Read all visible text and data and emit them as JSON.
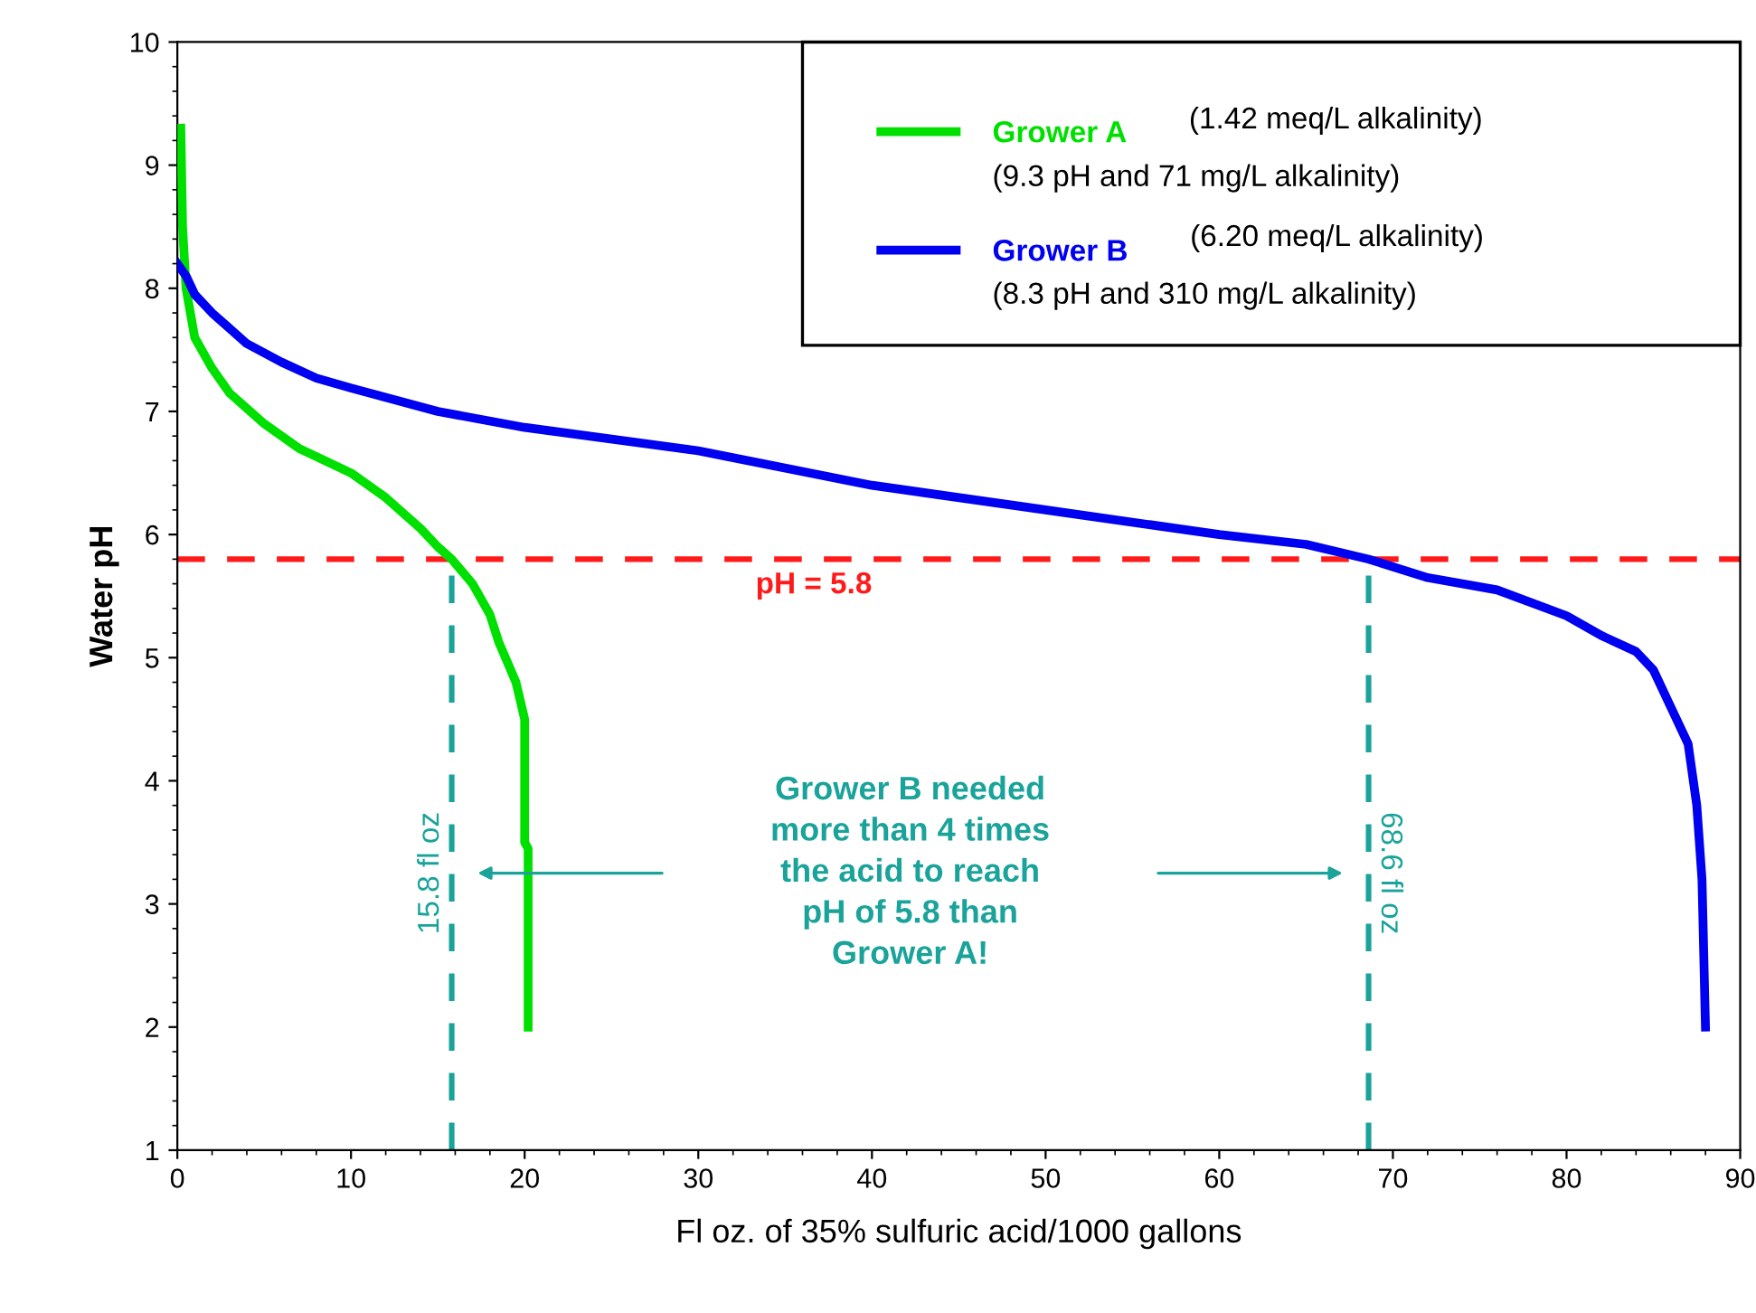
{
  "chart_data": {
    "type": "line",
    "xlabel": "Fl oz. of 35% sulfuric acid/1000 gallons",
    "ylabel": "Water pH",
    "xlim": [
      0,
      90
    ],
    "xticks": [
      0,
      10,
      20,
      30,
      40,
      50,
      60,
      70,
      80,
      90
    ],
    "ylim": [
      1,
      10
    ],
    "yticks": [
      1,
      2,
      3,
      4,
      5,
      6,
      7,
      8,
      9,
      10
    ],
    "grid": false,
    "legend": "top right",
    "marker": "none",
    "line_style": "solid",
    "series": [
      {
        "name": "Grower A",
        "color": "#00e000",
        "x": [
          0.2,
          0.3,
          0.5,
          1,
          2,
          3,
          5,
          7,
          10,
          12,
          14,
          15,
          15.8,
          17,
          18,
          18.5,
          19.5,
          20,
          20,
          20.2,
          20.2
        ],
        "values": [
          9.3,
          8.5,
          8.0,
          7.6,
          7.35,
          7.15,
          6.9,
          6.7,
          6.5,
          6.3,
          6.05,
          5.9,
          5.8,
          5.6,
          5.35,
          5.13,
          4.8,
          4.5,
          3.5,
          3.45,
          2.0
        ]
      },
      {
        "name": "Grower B",
        "color": "#0000f0",
        "x": [
          0,
          0.5,
          1,
          2,
          4,
          6,
          8,
          10,
          15,
          20,
          30,
          40,
          50,
          60,
          65,
          68.6,
          72,
          76,
          80,
          82,
          84,
          85,
          86,
          87,
          87.5,
          87.8,
          88
        ],
        "values": [
          8.2,
          8.1,
          7.95,
          7.8,
          7.55,
          7.4,
          7.27,
          7.19,
          7.0,
          6.87,
          6.68,
          6.4,
          6.2,
          6.0,
          5.92,
          5.8,
          5.65,
          5.55,
          5.34,
          5.18,
          5.05,
          4.9,
          4.6,
          4.3,
          3.8,
          3.2,
          2.0
        ]
      }
    ],
    "ref_lines": [
      {
        "axis": "y",
        "value": 5.8,
        "label": "pH = 5.8",
        "color": "#ff1a1a",
        "line_style": "dashed"
      },
      {
        "axis": "x",
        "value": 15.8,
        "label": "15.8 fl oz",
        "color": "#1aa39a",
        "line_style": "dashed"
      },
      {
        "axis": "x",
        "value": 68.6,
        "label": "68.6 fl oz",
        "color": "#1aa39a",
        "line_style": "dashed"
      }
    ],
    "annotations": [
      "(1.42 meq/L alkalinity)",
      "(9.3 pH and 71 mg/L alkalinity)",
      "(6.20 meq/L alkalinity)",
      "(8.3 pH and 310 mg/L alkalinity)",
      "Grower B needed\nmore than 4 times\nthe acid to reach\npH of 5.8 than\nGrower A!"
    ]
  }
}
